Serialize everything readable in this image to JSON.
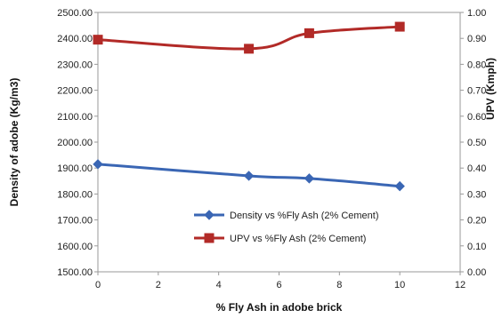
{
  "chart_data": {
    "type": "line",
    "title": "",
    "xlabel": "% Fly Ash in adobe brick",
    "ylabel_left": "Density of adobe (Kg/m3)",
    "ylabel_right": "UPV  (Kmph)",
    "xlim": [
      0,
      12
    ],
    "xticks": [
      "0",
      "2",
      "4",
      "6",
      "8",
      "10",
      "12"
    ],
    "ylim_left": [
      1500,
      2500
    ],
    "yticks_left": [
      "1500.00",
      "1600.00",
      "1700.00",
      "1800.00",
      "1900.00",
      "2000.00",
      "2100.00",
      "2200.00",
      "2300.00",
      "2400.00",
      "2500.00"
    ],
    "ylim_right": [
      0,
      1
    ],
    "yticks_right": [
      "0.00",
      "0.10",
      "0.20",
      "0.30",
      "0.40",
      "0.50",
      "0.60",
      "0.70",
      "0.80",
      "0.90",
      "1.00"
    ],
    "grid": false,
    "legend_position": "lower-center",
    "series": [
      {
        "name": "Density vs %Fly Ash (2% Cement)",
        "axis": "left",
        "color": "#3a66b4",
        "marker": "diamond",
        "x": [
          0,
          5,
          7,
          10
        ],
        "y": [
          1915,
          1870,
          1860,
          1830
        ]
      },
      {
        "name": "UPV vs %Fly Ash (2% Cement)",
        "axis": "right",
        "color": "#b22a27",
        "marker": "square",
        "x": [
          0,
          5,
          7,
          10
        ],
        "y": [
          0.895,
          0.86,
          0.92,
          0.945
        ]
      }
    ]
  }
}
